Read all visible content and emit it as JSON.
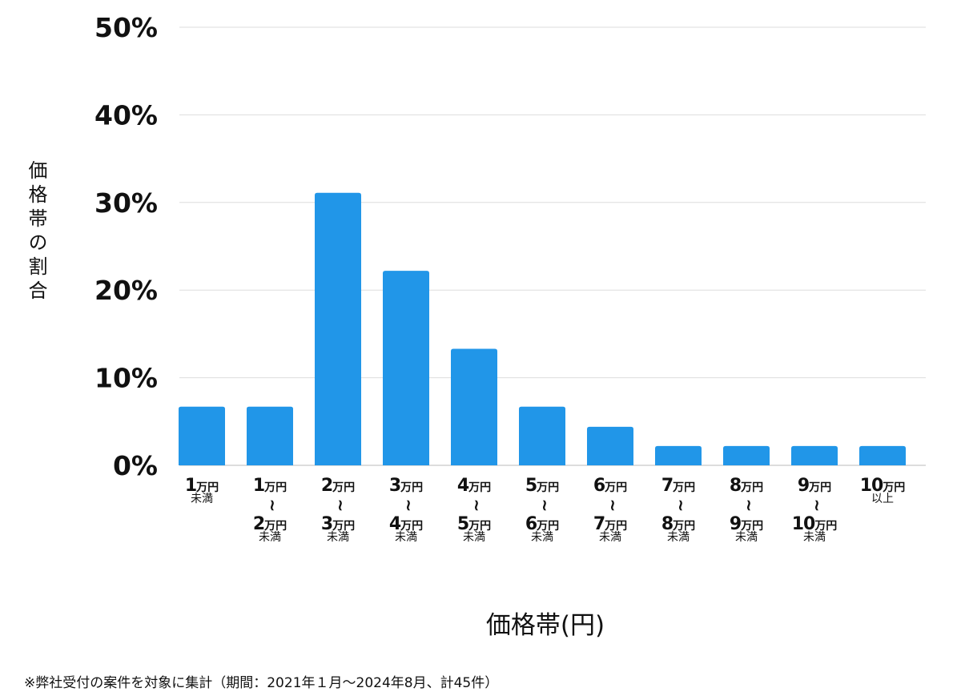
{
  "chart_data": {
    "type": "bar",
    "title": "",
    "xlabel": "価格帯(円)",
    "ylabel": "価格帯の割合",
    "ylim": [
      0,
      50
    ],
    "yticks": [
      "0%",
      "10%",
      "20%",
      "30%",
      "40%",
      "50%"
    ],
    "ytick_values": [
      0,
      10,
      20,
      30,
      40,
      50
    ],
    "grid": true,
    "bar_color": "#2196E8",
    "categories": [
      [
        "1万円",
        "未満"
      ],
      [
        "1万円",
        "～",
        "2万円",
        "未満"
      ],
      [
        "2万円",
        "～",
        "3万円",
        "未満"
      ],
      [
        "3万円",
        "～",
        "4万円",
        "未満"
      ],
      [
        "4万円",
        "～",
        "5万円",
        "未満"
      ],
      [
        "5万円",
        "～",
        "6万円",
        "未満"
      ],
      [
        "6万円",
        "～",
        "7万円",
        "未満"
      ],
      [
        "7万円",
        "～",
        "8万円",
        "未満"
      ],
      [
        "8万円",
        "～",
        "9万円",
        "未満"
      ],
      [
        "9万円",
        "～",
        "10万円",
        "未満"
      ],
      [
        "10万円",
        "以上"
      ]
    ],
    "values": [
      6.7,
      6.7,
      31.1,
      22.2,
      13.3,
      6.7,
      4.4,
      2.2,
      2.2,
      2.2,
      2.2
    ]
  },
  "footnote": "※弊社受付の案件を対象に集計（期間：2021年１月～2024年8月、計45件）"
}
